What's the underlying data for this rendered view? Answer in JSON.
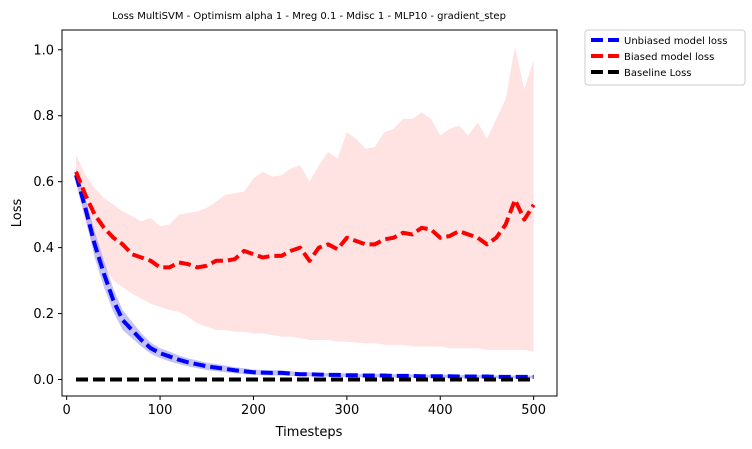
{
  "chart_data": {
    "type": "line",
    "title": "Loss MultiSVM - Optimism alpha 1 - Mreg 0.1 - Mdisc 1 - MLP10 - gradient_step",
    "xlabel": "Timesteps",
    "ylabel": "Loss",
    "xlim": [
      -5,
      525
    ],
    "ylim": [
      -0.05,
      1.06
    ],
    "xticks": [
      "0",
      "100",
      "200",
      "300",
      "400",
      "500"
    ],
    "yticks": [
      "0.0",
      "0.2",
      "0.4",
      "0.6",
      "0.8",
      "1.0"
    ],
    "legend_position": "outside-top-right",
    "grid": false,
    "x": [
      10,
      20,
      30,
      40,
      50,
      60,
      70,
      80,
      90,
      100,
      110,
      120,
      130,
      140,
      150,
      160,
      170,
      180,
      190,
      200,
      210,
      220,
      230,
      240,
      250,
      260,
      270,
      280,
      290,
      300,
      310,
      320,
      330,
      340,
      350,
      360,
      370,
      380,
      390,
      400,
      410,
      420,
      430,
      440,
      450,
      460,
      470,
      480,
      490,
      500
    ],
    "series": [
      {
        "name": "Unbiased model loss",
        "color": "#0000ff",
        "band_color": "#7b7bef",
        "values": [
          0.62,
          0.52,
          0.41,
          0.32,
          0.24,
          0.18,
          0.15,
          0.12,
          0.095,
          0.08,
          0.07,
          0.06,
          0.052,
          0.046,
          0.04,
          0.036,
          0.032,
          0.028,
          0.025,
          0.022,
          0.021,
          0.02,
          0.02,
          0.018,
          0.016,
          0.016,
          0.015,
          0.014,
          0.014,
          0.013,
          0.013,
          0.012,
          0.012,
          0.012,
          0.011,
          0.011,
          0.011,
          0.01,
          0.01,
          0.01,
          0.01,
          0.009,
          0.009,
          0.009,
          0.009,
          0.008,
          0.008,
          0.008,
          0.008,
          0.008
        ],
        "lower": [
          0.6,
          0.49,
          0.37,
          0.28,
          0.205,
          0.15,
          0.125,
          0.1,
          0.078,
          0.065,
          0.055,
          0.047,
          0.04,
          0.034,
          0.029,
          0.025,
          0.022,
          0.019,
          0.016,
          0.014,
          0.013,
          0.012,
          0.012,
          0.011,
          0.01,
          0.01,
          0.009,
          0.009,
          0.008,
          0.008,
          0.008,
          0.007,
          0.007,
          0.007,
          0.006,
          0.006,
          0.006,
          0.006,
          0.005,
          0.005,
          0.005,
          0.005,
          0.004,
          0.004,
          0.004,
          0.004,
          0.004,
          0.004,
          0.004,
          0.004
        ],
        "upper": [
          0.64,
          0.55,
          0.45,
          0.36,
          0.275,
          0.21,
          0.175,
          0.14,
          0.112,
          0.095,
          0.085,
          0.073,
          0.064,
          0.058,
          0.051,
          0.047,
          0.042,
          0.037,
          0.034,
          0.03,
          0.029,
          0.028,
          0.028,
          0.025,
          0.022,
          0.022,
          0.021,
          0.019,
          0.02,
          0.018,
          0.018,
          0.017,
          0.017,
          0.017,
          0.016,
          0.016,
          0.016,
          0.014,
          0.015,
          0.015,
          0.015,
          0.013,
          0.014,
          0.014,
          0.014,
          0.012,
          0.012,
          0.012,
          0.012,
          0.012
        ]
      },
      {
        "name": "Biased model loss",
        "color": "#ff0000",
        "band_color": "#ffe0e0",
        "values": [
          0.63,
          0.56,
          0.5,
          0.46,
          0.43,
          0.41,
          0.38,
          0.37,
          0.36,
          0.34,
          0.34,
          0.355,
          0.35,
          0.34,
          0.345,
          0.36,
          0.36,
          0.365,
          0.39,
          0.38,
          0.37,
          0.375,
          0.375,
          0.39,
          0.4,
          0.36,
          0.4,
          0.41,
          0.395,
          0.43,
          0.42,
          0.41,
          0.41,
          0.425,
          0.43,
          0.445,
          0.44,
          0.46,
          0.455,
          0.43,
          0.435,
          0.45,
          0.44,
          0.43,
          0.41,
          0.43,
          0.47,
          0.545,
          0.485,
          0.53
        ],
        "lower": [
          0.59,
          0.48,
          0.39,
          0.34,
          0.3,
          0.28,
          0.26,
          0.245,
          0.23,
          0.22,
          0.21,
          0.205,
          0.19,
          0.17,
          0.16,
          0.15,
          0.15,
          0.145,
          0.145,
          0.14,
          0.14,
          0.135,
          0.13,
          0.13,
          0.125,
          0.12,
          0.12,
          0.12,
          0.115,
          0.115,
          0.112,
          0.11,
          0.11,
          0.105,
          0.105,
          0.105,
          0.1,
          0.1,
          0.1,
          0.1,
          0.095,
          0.095,
          0.095,
          0.095,
          0.09,
          0.09,
          0.09,
          0.09,
          0.09,
          0.085
        ],
        "upper": [
          0.68,
          0.62,
          0.58,
          0.55,
          0.53,
          0.51,
          0.495,
          0.48,
          0.49,
          0.465,
          0.47,
          0.5,
          0.505,
          0.51,
          0.52,
          0.54,
          0.56,
          0.565,
          0.57,
          0.61,
          0.63,
          0.615,
          0.62,
          0.64,
          0.65,
          0.6,
          0.65,
          0.69,
          0.67,
          0.75,
          0.73,
          0.7,
          0.705,
          0.75,
          0.76,
          0.79,
          0.79,
          0.81,
          0.79,
          0.74,
          0.76,
          0.77,
          0.74,
          0.78,
          0.73,
          0.79,
          0.85,
          1.01,
          0.88,
          0.97
        ]
      },
      {
        "name": "Baseline Loss",
        "color": "#000000",
        "values": [
          0,
          0,
          0,
          0,
          0,
          0,
          0,
          0,
          0,
          0,
          0,
          0,
          0,
          0,
          0,
          0,
          0,
          0,
          0,
          0,
          0,
          0,
          0,
          0,
          0,
          0,
          0,
          0,
          0,
          0,
          0,
          0,
          0,
          0,
          0,
          0,
          0,
          0,
          0,
          0,
          0,
          0,
          0,
          0,
          0,
          0,
          0,
          0,
          0,
          0
        ]
      }
    ]
  }
}
